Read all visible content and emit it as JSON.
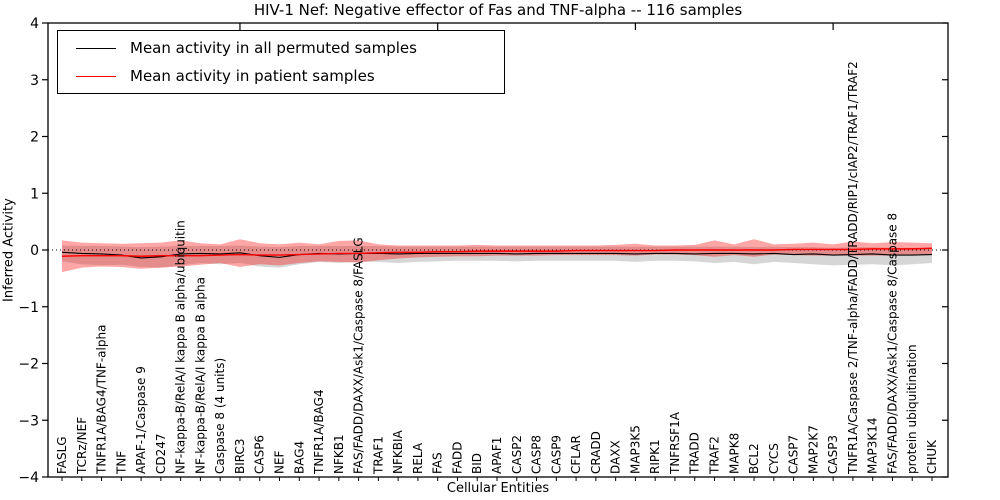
{
  "figure": {
    "title": "HIV-1 Nef: Negative effector of Fas and TNF-alpha -- 116 samples",
    "xlabel": "Cellular Entities",
    "ylabel": "Inferred Activity"
  },
  "legend": {
    "entries": [
      {
        "label": "Mean activity in all permuted samples",
        "color": "#000000"
      },
      {
        "label": "Mean activity in patient samples",
        "color": "#ff0000"
      }
    ]
  },
  "chart_data": {
    "type": "line",
    "title": "HIV-1 Nef: Negative effector of Fas and TNF-alpha -- 116 samples",
    "xlabel": "Cellular Entities",
    "ylabel": "Inferred Activity",
    "ylim": [
      -4,
      4
    ],
    "yticks": [
      -4,
      -3,
      -2,
      -1,
      0,
      1,
      2,
      3,
      4
    ],
    "grid": false,
    "legend_position": "upper left",
    "zero_line": 0,
    "categories": [
      "FASLG",
      "TCRz/NEF",
      "TNFR1A/BAG4/TNF-alpha",
      "TNF",
      "APAF-1/Caspase 9",
      "CD247",
      "NF-kappa-B/RelA/I kappa B alpha/ubiquitin",
      "NF-kappa-B/RelA/I kappa B alpha",
      "Caspase 8 (4 units)",
      "BIRC3",
      "CASP6",
      "NEF",
      "BAG4",
      "TNFR1A/BAG4",
      "NFKB1",
      "FAS/FADD/DAXX/Ask1/Caspase 8/FASLG",
      "TRAF1",
      "NFKBIA",
      "RELA",
      "FAS",
      "FADD",
      "BID",
      "APAF1",
      "CASP2",
      "CASP8",
      "CASP9",
      "CFLAR",
      "CRADD",
      "DAXX",
      "MAP3K5",
      "RIPK1",
      "TNFRSF1A",
      "TRADD",
      "TRAF2",
      "MAPK8",
      "BCL2",
      "CYCS",
      "CASP7",
      "MAP2K7",
      "CASP3",
      "TNFR1A/Caspase 2/TNF-alpha/FADD/TRADD/RIP1/cIAP2/TRAF1/TRAF2",
      "MAP3K14",
      "FAS/FADD/DAXX/Ask1/Caspase 8/Caspase 8",
      "protein ubiquitination",
      "CHUK"
    ],
    "series": [
      {
        "name": "Mean activity in all permuted samples",
        "color": "#000000",
        "values": [
          -0.04,
          -0.06,
          -0.07,
          -0.09,
          -0.14,
          -0.12,
          -0.07,
          -0.06,
          -0.07,
          -0.05,
          -0.1,
          -0.13,
          -0.08,
          -0.06,
          -0.07,
          -0.06,
          -0.06,
          -0.07,
          -0.06,
          -0.06,
          -0.06,
          -0.06,
          -0.06,
          -0.07,
          -0.06,
          -0.06,
          -0.06,
          -0.06,
          -0.06,
          -0.07,
          -0.06,
          -0.06,
          -0.07,
          -0.06,
          -0.06,
          -0.07,
          -0.06,
          -0.08,
          -0.07,
          -0.09,
          -0.08,
          -0.07,
          -0.09,
          -0.09,
          -0.08
        ]
      },
      {
        "name": "Mean activity in patient samples",
        "color": "#ff0000",
        "values": [
          -0.11,
          -0.1,
          -0.1,
          -0.1,
          -0.11,
          -0.1,
          -0.1,
          -0.1,
          -0.09,
          -0.08,
          -0.09,
          -0.09,
          -0.08,
          -0.07,
          -0.06,
          -0.06,
          -0.05,
          -0.04,
          -0.04,
          -0.03,
          -0.03,
          -0.02,
          -0.02,
          -0.02,
          -0.02,
          -0.02,
          -0.01,
          -0.01,
          -0.01,
          -0.01,
          -0.01,
          0.0,
          0.0,
          0.0,
          0.0,
          0.0,
          0.0,
          0.01,
          0.01,
          0.01,
          0.01,
          0.02,
          0.02,
          0.02,
          0.03
        ]
      }
    ],
    "bands": [
      {
        "name": "permuted-samples-std-band",
        "color": "rgba(0,0,0,0.16)",
        "upper": [
          0.08,
          0.07,
          0.07,
          0.06,
          0.05,
          0.06,
          0.07,
          0.07,
          0.07,
          0.08,
          0.06,
          0.05,
          0.07,
          0.07,
          0.07,
          0.07,
          0.07,
          0.06,
          0.06,
          0.06,
          0.06,
          0.06,
          0.06,
          0.06,
          0.06,
          0.06,
          0.06,
          0.06,
          0.06,
          0.06,
          0.06,
          0.06,
          0.06,
          0.06,
          0.06,
          0.05,
          0.06,
          0.05,
          0.05,
          0.04,
          0.05,
          0.05,
          0.04,
          0.04,
          0.05
        ],
        "lower": [
          -0.2,
          -0.25,
          -0.27,
          -0.26,
          -0.3,
          -0.31,
          -0.27,
          -0.23,
          -0.25,
          -0.23,
          -0.29,
          -0.31,
          -0.25,
          -0.21,
          -0.23,
          -0.21,
          -0.21,
          -0.23,
          -0.21,
          -0.2,
          -0.19,
          -0.19,
          -0.19,
          -0.2,
          -0.19,
          -0.19,
          -0.19,
          -0.19,
          -0.19,
          -0.21,
          -0.19,
          -0.19,
          -0.2,
          -0.23,
          -0.21,
          -0.25,
          -0.21,
          -0.23,
          -0.25,
          -0.27,
          -0.26,
          -0.25,
          -0.27,
          -0.25,
          -0.23
        ]
      },
      {
        "name": "patient-samples-std-band",
        "color": "rgba(255,0,0,0.35)",
        "upper": [
          0.17,
          0.13,
          0.12,
          0.11,
          0.12,
          0.13,
          0.17,
          0.12,
          0.1,
          0.19,
          0.12,
          0.1,
          0.13,
          0.1,
          0.16,
          0.17,
          0.1,
          0.08,
          0.08,
          0.08,
          0.08,
          0.09,
          0.08,
          0.08,
          0.08,
          0.08,
          0.08,
          0.08,
          0.09,
          0.11,
          0.08,
          0.08,
          0.09,
          0.17,
          0.1,
          0.19,
          0.1,
          0.11,
          0.13,
          0.1,
          0.15,
          0.12,
          0.14,
          0.13,
          0.12
        ],
        "lower": [
          -0.39,
          -0.31,
          -0.29,
          -0.3,
          -0.33,
          -0.31,
          -0.29,
          -0.26,
          -0.23,
          -0.3,
          -0.25,
          -0.27,
          -0.23,
          -0.2,
          -0.21,
          -0.22,
          -0.18,
          -0.15,
          -0.13,
          -0.12,
          -0.11,
          -0.11,
          -0.1,
          -0.1,
          -0.1,
          -0.09,
          -0.09,
          -0.09,
          -0.09,
          -0.1,
          -0.08,
          -0.08,
          -0.09,
          -0.12,
          -0.09,
          -0.12,
          -0.08,
          -0.09,
          -0.1,
          -0.1,
          -0.1,
          -0.1,
          -0.1,
          -0.09,
          -0.08
        ]
      }
    ]
  }
}
